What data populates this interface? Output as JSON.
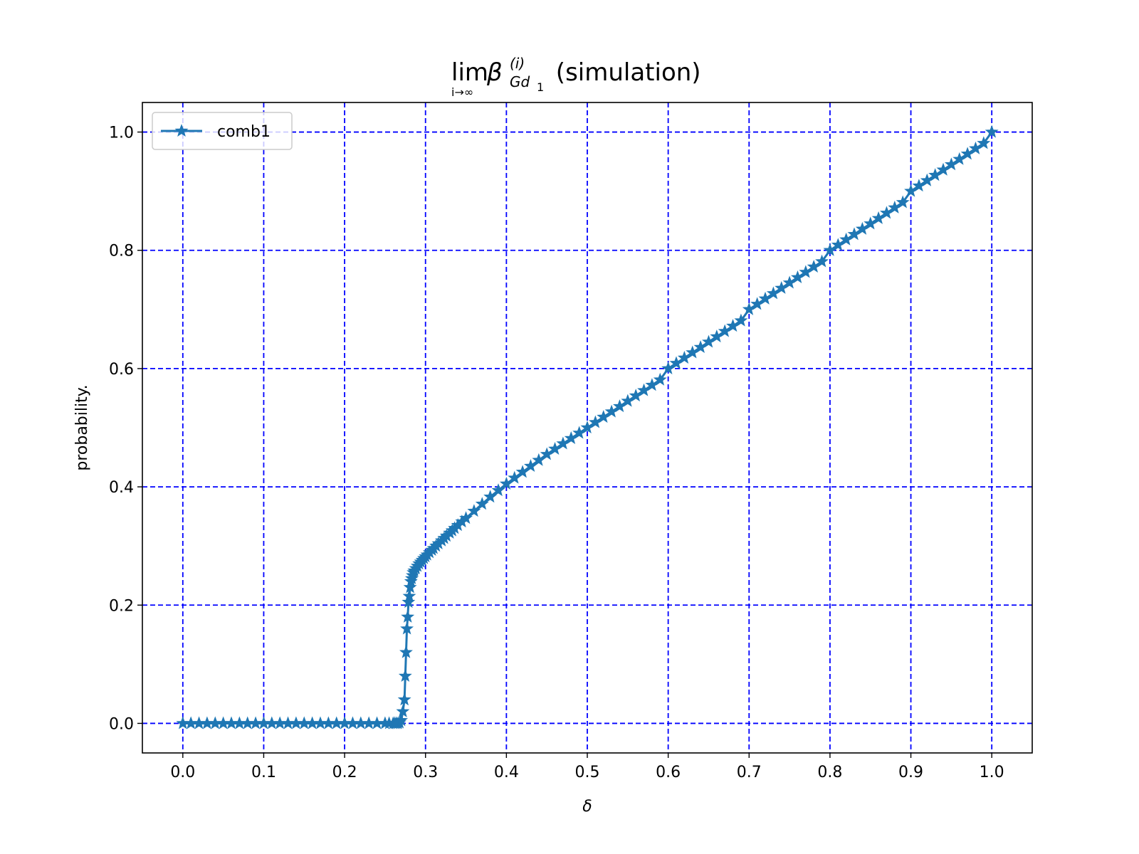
{
  "chart_data": {
    "type": "line",
    "title": {
      "lim": "lim",
      "lim_sub": "i→∞",
      "beta": "β",
      "sup": "(i)",
      "sub": "Gd",
      "sub_index": "1",
      "suffix": " (simulation)"
    },
    "xlabel": "δ",
    "ylabel": "probability.",
    "xlim": [
      -0.05,
      1.05
    ],
    "ylim": [
      -0.05,
      1.05
    ],
    "xticks": [
      0.0,
      0.1,
      0.2,
      0.3,
      0.4,
      0.5,
      0.6,
      0.7,
      0.8,
      0.9,
      1.0
    ],
    "xtick_labels": [
      "0.0",
      "0.1",
      "0.2",
      "0.3",
      "0.4",
      "0.5",
      "0.6",
      "0.7",
      "0.8",
      "0.9",
      "1.0"
    ],
    "yticks": [
      0.0,
      0.2,
      0.4,
      0.6,
      0.8,
      1.0
    ],
    "ytick_labels": [
      "0.0",
      "0.2",
      "0.4",
      "0.6",
      "0.8",
      "1.0"
    ],
    "grid": true,
    "grid_color": "#0000ff",
    "line_color": "#1f77b4",
    "marker": "star",
    "legend_position": "top-left",
    "series": [
      {
        "name": "comb1",
        "x": [
          0.0,
          0.01,
          0.02,
          0.03,
          0.04,
          0.05,
          0.06,
          0.07,
          0.08,
          0.09,
          0.1,
          0.11,
          0.12,
          0.13,
          0.14,
          0.15,
          0.16,
          0.17,
          0.18,
          0.19,
          0.2,
          0.21,
          0.22,
          0.23,
          0.24,
          0.25,
          0.255,
          0.26,
          0.262,
          0.264,
          0.266,
          0.268,
          0.27,
          0.272,
          0.274,
          0.275,
          0.276,
          0.277,
          0.278,
          0.279,
          0.28,
          0.281,
          0.282,
          0.283,
          0.284,
          0.285,
          0.286,
          0.288,
          0.29,
          0.292,
          0.294,
          0.296,
          0.298,
          0.3,
          0.302,
          0.305,
          0.308,
          0.31,
          0.313,
          0.316,
          0.32,
          0.323,
          0.326,
          0.33,
          0.333,
          0.336,
          0.34,
          0.345,
          0.35,
          0.36,
          0.37,
          0.38,
          0.39,
          0.4,
          0.41,
          0.42,
          0.43,
          0.44,
          0.45,
          0.46,
          0.47,
          0.48,
          0.49,
          0.5,
          0.51,
          0.52,
          0.53,
          0.54,
          0.55,
          0.56,
          0.57,
          0.58,
          0.59,
          0.6,
          0.61,
          0.62,
          0.63,
          0.64,
          0.65,
          0.66,
          0.67,
          0.68,
          0.69,
          0.7,
          0.71,
          0.72,
          0.73,
          0.74,
          0.75,
          0.76,
          0.77,
          0.78,
          0.79,
          0.8,
          0.81,
          0.82,
          0.83,
          0.84,
          0.85,
          0.86,
          0.87,
          0.88,
          0.89,
          0.9,
          0.91,
          0.92,
          0.93,
          0.94,
          0.95,
          0.96,
          0.97,
          0.98,
          0.99,
          1.0
        ],
        "y": [
          0.0,
          0.0,
          0.0,
          0.0,
          0.0,
          0.0,
          0.0,
          0.0,
          0.0,
          0.0,
          0.0,
          0.0,
          0.0,
          0.0,
          0.0,
          0.0,
          0.0,
          0.0,
          0.0,
          0.0,
          0.0,
          0.0,
          0.0,
          0.0,
          0.0,
          0.0,
          0.0,
          0.0,
          0.0,
          0.0,
          0.0,
          0.001,
          0.005,
          0.02,
          0.04,
          0.08,
          0.12,
          0.16,
          0.18,
          0.205,
          0.215,
          0.23,
          0.24,
          0.245,
          0.25,
          0.255,
          0.258,
          0.262,
          0.266,
          0.27,
          0.273,
          0.276,
          0.279,
          0.282,
          0.285,
          0.289,
          0.293,
          0.296,
          0.3,
          0.304,
          0.309,
          0.313,
          0.317,
          0.322,
          0.326,
          0.33,
          0.335,
          0.341,
          0.347,
          0.359,
          0.371,
          0.383,
          0.394,
          0.405,
          0.415,
          0.425,
          0.435,
          0.445,
          0.455,
          0.464,
          0.473,
          0.482,
          0.491,
          0.5,
          0.509,
          0.518,
          0.527,
          0.536,
          0.545,
          0.554,
          0.563,
          0.572,
          0.581,
          0.6,
          0.609,
          0.618,
          0.627,
          0.636,
          0.645,
          0.654,
          0.663,
          0.672,
          0.681,
          0.7,
          0.709,
          0.718,
          0.727,
          0.736,
          0.745,
          0.754,
          0.763,
          0.772,
          0.781,
          0.8,
          0.809,
          0.818,
          0.827,
          0.836,
          0.845,
          0.854,
          0.863,
          0.872,
          0.881,
          0.9,
          0.909,
          0.918,
          0.927,
          0.936,
          0.945,
          0.954,
          0.963,
          0.972,
          0.981,
          1.0
        ]
      }
    ]
  }
}
